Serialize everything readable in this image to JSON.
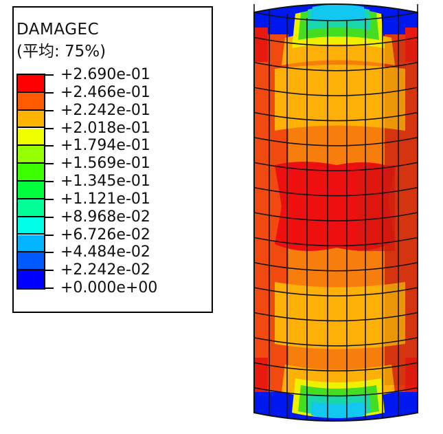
{
  "legend": {
    "variable": "DAMAGEC",
    "averaging": "(平均: 75%)",
    "labels": [
      "+2.690e-01",
      "+2.466e-01",
      "+2.242e-01",
      "+2.018e-01",
      "+1.794e-01",
      "+1.569e-01",
      "+1.345e-01",
      "+1.121e-01",
      "+8.968e-02",
      "+6.726e-02",
      "+4.484e-02",
      "+2.242e-02",
      "+0.000e+00"
    ],
    "colors": [
      "#ff0000",
      "#ff5a00",
      "#ffb400",
      "#f0ff00",
      "#96ff00",
      "#3cff00",
      "#00ff3c",
      "#00ff96",
      "#00ffe6",
      "#00b4ff",
      "#005aff",
      "#0000ff"
    ]
  },
  "model": {
    "name": "cylinder-damage-contour",
    "colors": {
      "red": "#ee1010",
      "darkred": "#d81a10",
      "orange_red": "#f04a10",
      "orange": "#f77e0c",
      "amber": "#fcb008",
      "yellow": "#eef000",
      "green": "#44dd22",
      "teal": "#1bd6a8",
      "cyan": "#12c8f0",
      "blue_light": "#1a8cff",
      "blue": "#0030ff",
      "blue_dark": "#0010e0"
    }
  }
}
